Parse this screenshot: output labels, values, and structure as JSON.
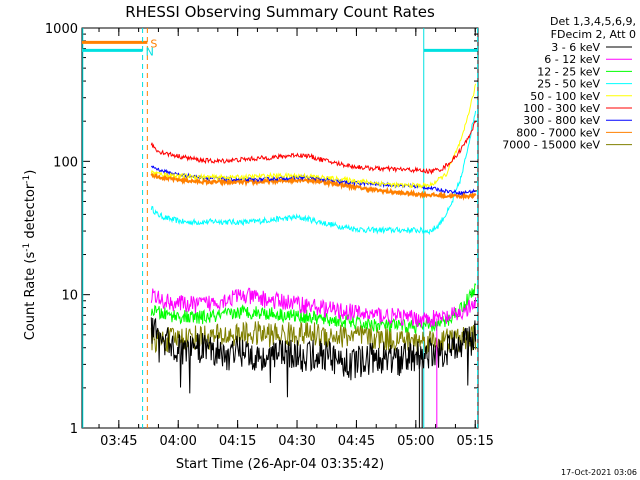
{
  "chart_data": {
    "type": "line",
    "title": "RHESSI Observing Summary Count Rates",
    "xlabel": "Start Time (26-Apr-04 03:35:42)",
    "ylabel_main": "Count Rate (s",
    "ylabel_sup1": "-1",
    "ylabel_mid": " detector",
    "ylabel_sup2": "-1",
    "ylabel_end": ")",
    "y_scale": "log",
    "ylim": [
      1,
      1000
    ],
    "xlim_minutes": [
      0,
      100
    ],
    "x_ticks": [
      {
        "label": "03:45",
        "t": 9.3
      },
      {
        "label": "04:00",
        "t": 24.3
      },
      {
        "label": "04:15",
        "t": 39.3
      },
      {
        "label": "04:30",
        "t": 54.3
      },
      {
        "label": "04:45",
        "t": 69.3
      },
      {
        "label": "05:00",
        "t": 84.3
      },
      {
        "label": "05:15",
        "t": 99.3
      }
    ],
    "y_ticks": [
      {
        "label": "1",
        "v": 1
      },
      {
        "label": "10",
        "v": 10
      },
      {
        "label": "100",
        "v": 100
      },
      {
        "label": "1000",
        "v": 1000
      }
    ],
    "legend_header": [
      "Det 1,3,4,5,6,9,",
      "FDecim 2, Att 0"
    ],
    "timestamp": "17-Oct-2021 03:06",
    "flags": [
      {
        "letter": "S",
        "color": "#ff8000",
        "t_start": 0,
        "t_end": 16.5,
        "level": 780,
        "line_t": 16.5
      },
      {
        "letter": "N",
        "color": "#00e0e0",
        "t_start": 0,
        "t_end": 15.3,
        "level": 680,
        "line_t": 15.3
      }
    ],
    "saa_flag": {
      "color": "#00e0e0",
      "t_start": 86.3,
      "t_end": 99.9,
      "level": 680
    },
    "night_lines": [
      {
        "t": 0.2,
        "color": "#00e0e0",
        "style": "solid"
      },
      {
        "t": 86.3,
        "color": "#00e0e0",
        "style": "solid"
      },
      {
        "t": 99.9,
        "color": "#00e0e0",
        "style": "dashed"
      }
    ],
    "series": [
      {
        "name": "3 - 6 keV",
        "color": "#000000",
        "points": [
          [
            17.5,
            5.5
          ],
          [
            20,
            4.6
          ],
          [
            24,
            4.0
          ],
          [
            28,
            3.8
          ],
          [
            32,
            4.2
          ],
          [
            36,
            3.5
          ],
          [
            40,
            3.8
          ],
          [
            44,
            3.5
          ],
          [
            48,
            3.4
          ],
          [
            52,
            3.8
          ],
          [
            56,
            3.3
          ],
          [
            60,
            3.6
          ],
          [
            64,
            3.3
          ],
          [
            68,
            3.0
          ],
          [
            72,
            3.3
          ],
          [
            76,
            3.4
          ],
          [
            80,
            3.2
          ],
          [
            84,
            3.5
          ],
          [
            88,
            3.6
          ],
          [
            92,
            3.8
          ],
          [
            96,
            4.5
          ],
          [
            99.5,
            5.0
          ]
        ]
      },
      {
        "name": "6 - 12 keV",
        "color": "#ff00ff",
        "points": [
          [
            17.5,
            10
          ],
          [
            20,
            9.0
          ],
          [
            24,
            8.6
          ],
          [
            28,
            8.4
          ],
          [
            32,
            8.6
          ],
          [
            36,
            9.2
          ],
          [
            40,
            9.8
          ],
          [
            44,
            9.5
          ],
          [
            48,
            9.0
          ],
          [
            52,
            8.8
          ],
          [
            56,
            8.4
          ],
          [
            60,
            8.0
          ],
          [
            64,
            7.6
          ],
          [
            68,
            7.4
          ],
          [
            72,
            7.1
          ],
          [
            76,
            7.0
          ],
          [
            80,
            6.8
          ],
          [
            84,
            6.6
          ],
          [
            88,
            6.6
          ],
          [
            92,
            6.7
          ],
          [
            96,
            7.3
          ],
          [
            99.5,
            8.5
          ]
        ]
      },
      {
        "name": "12 - 25 keV",
        "color": "#00ff00",
        "points": [
          [
            17.5,
            7.6
          ],
          [
            20,
            7.2
          ],
          [
            24,
            6.9
          ],
          [
            28,
            6.7
          ],
          [
            32,
            6.8
          ],
          [
            36,
            7.0
          ],
          [
            40,
            7.4
          ],
          [
            44,
            7.4
          ],
          [
            48,
            7.2
          ],
          [
            52,
            7.0
          ],
          [
            56,
            6.9
          ],
          [
            60,
            6.6
          ],
          [
            64,
            6.4
          ],
          [
            68,
            6.2
          ],
          [
            72,
            6.0
          ],
          [
            76,
            5.9
          ],
          [
            80,
            5.8
          ],
          [
            84,
            5.8
          ],
          [
            88,
            5.8
          ],
          [
            92,
            6.3
          ],
          [
            96,
            8.0
          ],
          [
            99.5,
            11.5
          ]
        ]
      },
      {
        "name": "25 - 50 keV",
        "color": "#00ffff",
        "points": [
          [
            17.5,
            45
          ],
          [
            19,
            40
          ],
          [
            22,
            37
          ],
          [
            26,
            35
          ],
          [
            30,
            35
          ],
          [
            34,
            35.5
          ],
          [
            38,
            35
          ],
          [
            42,
            35
          ],
          [
            46,
            36
          ],
          [
            50,
            37
          ],
          [
            54,
            38
          ],
          [
            57,
            37
          ],
          [
            60,
            35
          ],
          [
            64,
            33
          ],
          [
            68,
            31.5
          ],
          [
            72,
            30.5
          ],
          [
            76,
            30.5
          ],
          [
            80,
            30.5
          ],
          [
            84,
            30.5
          ],
          [
            88,
            30
          ],
          [
            90,
            33
          ],
          [
            93,
            45
          ],
          [
            96,
            80
          ],
          [
            99.5,
            250
          ]
        ]
      },
      {
        "name": "50 - 100 keV",
        "color": "#ffff00",
        "points": [
          [
            17.5,
            83
          ],
          [
            20,
            80
          ],
          [
            24,
            78
          ],
          [
            28,
            77
          ],
          [
            32,
            76
          ],
          [
            36,
            76
          ],
          [
            40,
            76
          ],
          [
            44,
            77
          ],
          [
            48,
            78
          ],
          [
            52,
            78
          ],
          [
            56,
            78
          ],
          [
            60,
            76
          ],
          [
            64,
            74
          ],
          [
            68,
            72
          ],
          [
            72,
            70
          ],
          [
            76,
            68
          ],
          [
            80,
            66
          ],
          [
            84,
            66
          ],
          [
            88,
            66
          ],
          [
            92,
            80
          ],
          [
            96,
            150
          ],
          [
            99.5,
            380
          ]
        ]
      },
      {
        "name": "100 - 300 keV",
        "color": "#ff0000",
        "points": [
          [
            17.5,
            135
          ],
          [
            19,
            120
          ],
          [
            22,
            113
          ],
          [
            26,
            107
          ],
          [
            30,
            102
          ],
          [
            34,
            100
          ],
          [
            38,
            102
          ],
          [
            42,
            104
          ],
          [
            46,
            106
          ],
          [
            50,
            108
          ],
          [
            54,
            112
          ],
          [
            57,
            110
          ],
          [
            60,
            104
          ],
          [
            64,
            97
          ],
          [
            68,
            92
          ],
          [
            72,
            89
          ],
          [
            76,
            88
          ],
          [
            80,
            87
          ],
          [
            84,
            86
          ],
          [
            88,
            84
          ],
          [
            91,
            88
          ],
          [
            94,
            105
          ],
          [
            97,
            140
          ],
          [
            99.5,
            200
          ]
        ]
      },
      {
        "name": "300 - 800 keV",
        "color": "#0000ff",
        "points": [
          [
            17.5,
            92
          ],
          [
            20,
            85
          ],
          [
            24,
            80
          ],
          [
            28,
            77
          ],
          [
            32,
            75
          ],
          [
            36,
            74
          ],
          [
            40,
            73
          ],
          [
            44,
            73
          ],
          [
            48,
            74
          ],
          [
            52,
            75
          ],
          [
            56,
            76
          ],
          [
            60,
            74
          ],
          [
            64,
            71
          ],
          [
            68,
            69
          ],
          [
            72,
            68
          ],
          [
            76,
            67
          ],
          [
            80,
            66
          ],
          [
            84,
            65
          ],
          [
            88,
            63
          ],
          [
            92,
            60
          ],
          [
            96,
            58
          ],
          [
            99.5,
            60
          ]
        ]
      },
      {
        "name": "800 - 7000 keV",
        "color": "#ff8000",
        "points": [
          [
            17.5,
            80
          ],
          [
            20,
            76
          ],
          [
            24,
            73
          ],
          [
            28,
            71
          ],
          [
            32,
            70
          ],
          [
            36,
            70
          ],
          [
            40,
            70
          ],
          [
            44,
            70
          ],
          [
            48,
            71
          ],
          [
            52,
            72
          ],
          [
            56,
            73
          ],
          [
            60,
            71
          ],
          [
            64,
            68
          ],
          [
            68,
            65
          ],
          [
            72,
            62
          ],
          [
            76,
            60
          ],
          [
            80,
            58
          ],
          [
            84,
            57
          ],
          [
            88,
            56
          ],
          [
            92,
            55
          ],
          [
            96,
            55
          ],
          [
            99.5,
            55
          ]
        ]
      },
      {
        "name": "7000 - 15000 keV",
        "color": "#808000",
        "points": [
          [
            17.5,
            4.6
          ],
          [
            20,
            4.5
          ],
          [
            24,
            4.7
          ],
          [
            28,
            4.8
          ],
          [
            32,
            4.8
          ],
          [
            36,
            4.9
          ],
          [
            40,
            5.0
          ],
          [
            44,
            5.1
          ],
          [
            48,
            5.0
          ],
          [
            52,
            5.0
          ],
          [
            56,
            5.1
          ],
          [
            60,
            5.0
          ],
          [
            64,
            4.9
          ],
          [
            68,
            4.9
          ],
          [
            72,
            4.8
          ],
          [
            76,
            4.7
          ],
          [
            80,
            4.6
          ],
          [
            84,
            4.5
          ],
          [
            88,
            4.5
          ],
          [
            92,
            4.5
          ],
          [
            96,
            4.6
          ],
          [
            99.5,
            4.8
          ]
        ]
      }
    ]
  }
}
